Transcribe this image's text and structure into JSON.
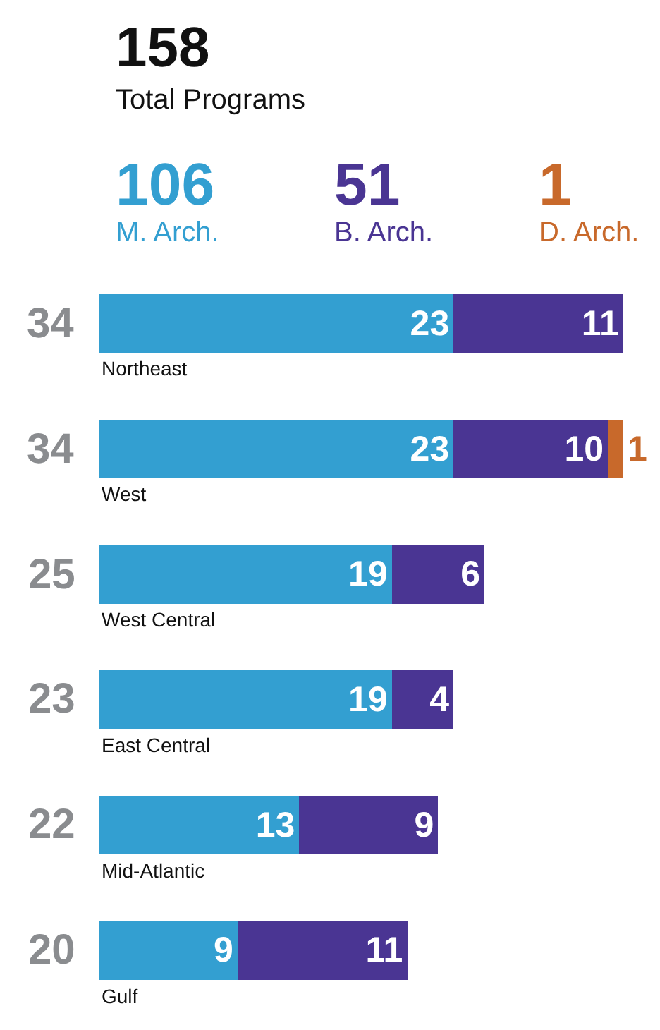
{
  "chart_data": {
    "type": "bar",
    "orientation": "horizontal",
    "stacked": true,
    "title": "158",
    "subtitle": "Total Programs",
    "categories": [
      "Northeast",
      "West",
      "West Central",
      "East Central",
      "Mid-Atlantic",
      "Gulf"
    ],
    "series": [
      {
        "name": "M. Arch.",
        "color": "#339fd1",
        "values": [
          23,
          23,
          19,
          19,
          13,
          9
        ]
      },
      {
        "name": "B. Arch.",
        "color": "#4a3593",
        "values": [
          11,
          10,
          6,
          4,
          9,
          11
        ]
      },
      {
        "name": "D. Arch.",
        "color": "#c8692b",
        "values": [
          null,
          1,
          null,
          null,
          null,
          null
        ]
      }
    ],
    "annotations": [
      "106",
      "51",
      "1"
    ],
    "totals": [
      "34",
      "34",
      "25",
      "23",
      "22",
      "20"
    ],
    "data_labels": true,
    "legend": "top",
    "tick_labels": false
  }
}
